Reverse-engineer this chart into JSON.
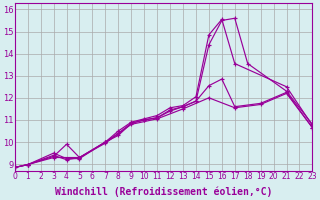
{
  "background_color": "#d8eef0",
  "line_color": "#990099",
  "grid_color": "#aaaaaa",
  "xlabel": "Windchill (Refroidissement éolien,°C)",
  "xlabel_fontsize": 7,
  "xtick_fontsize": 5.5,
  "ytick_fontsize": 6,
  "xlim": [
    0,
    23
  ],
  "ylim": [
    8.7,
    16.3
  ],
  "xticks": [
    0,
    1,
    2,
    3,
    4,
    5,
    6,
    7,
    8,
    9,
    10,
    11,
    12,
    13,
    14,
    15,
    16,
    17,
    18,
    19,
    20,
    21,
    22,
    23
  ],
  "yticks": [
    9,
    10,
    11,
    12,
    13,
    14,
    15,
    16
  ],
  "lines": [
    {
      "segments": [
        {
          "x": [
            0,
            1,
            3,
            4,
            5,
            7,
            8,
            9,
            10,
            11,
            12,
            13,
            14,
            15,
            16,
            17,
            21,
            23
          ],
          "y": [
            8.85,
            8.98,
            9.5,
            9.25,
            9.25,
            10.0,
            10.5,
            10.9,
            11.05,
            11.2,
            11.55,
            11.65,
            12.05,
            14.85,
            15.55,
            13.55,
            12.5,
            10.75
          ]
        }
      ]
    },
    {
      "segments": [
        {
          "x": [
            0,
            1,
            3,
            4,
            5,
            7,
            8,
            9,
            10,
            11,
            12,
            13,
            14,
            15,
            16,
            17,
            18,
            21,
            23
          ],
          "y": [
            8.85,
            8.98,
            9.4,
            9.2,
            9.3,
            10.0,
            10.4,
            10.85,
            11.0,
            11.1,
            11.45,
            11.6,
            11.85,
            14.4,
            15.5,
            15.6,
            13.55,
            12.3,
            10.8
          ]
        }
      ]
    },
    {
      "segments": [
        {
          "x": [
            0,
            1,
            3,
            4,
            5,
            7,
            8,
            9,
            10,
            11,
            12,
            13,
            14,
            15,
            16,
            17,
            19,
            21,
            23
          ],
          "y": [
            8.85,
            8.98,
            9.35,
            9.9,
            9.3,
            10.0,
            10.3,
            10.85,
            11.0,
            11.1,
            11.4,
            11.6,
            11.85,
            12.55,
            12.85,
            11.6,
            11.75,
            12.25,
            10.65
          ]
        }
      ]
    },
    {
      "segments": [
        {
          "x": [
            0,
            1,
            3,
            5,
            7,
            9,
            11,
            13,
            15,
            17,
            19,
            21,
            23
          ],
          "y": [
            8.85,
            8.98,
            9.3,
            9.3,
            9.95,
            10.8,
            11.05,
            11.5,
            12.0,
            11.55,
            11.7,
            12.2,
            10.65
          ]
        }
      ]
    }
  ]
}
